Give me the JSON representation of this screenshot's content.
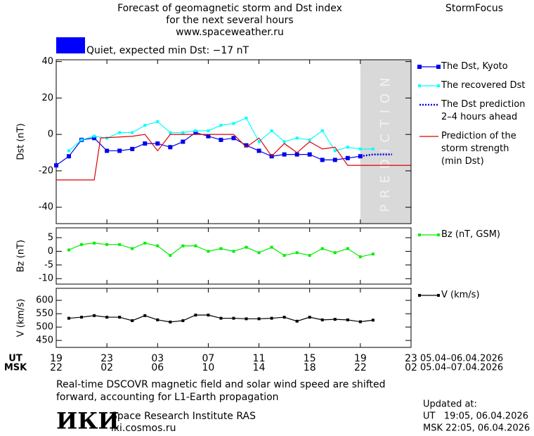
{
  "header": {
    "title_lines": [
      "Forecast of geomagnetic storm and Dst index",
      "for the next several hours",
      "www.spaceweather.ru"
    ],
    "brand": "StormFocus",
    "status": "Quiet, expected min Dst: −17 nT",
    "status_color": "#0000ff"
  },
  "chart_data": [
    {
      "type": "line",
      "ylabel": "Dst (nT)",
      "xlim": [
        0,
        28
      ],
      "xticks": [
        0,
        4,
        8,
        12,
        16,
        20,
        24,
        28
      ],
      "ylim": [
        -49,
        41
      ],
      "yticks": [
        -40,
        -20,
        0,
        20,
        40
      ],
      "shade": {
        "xlim": [
          24,
          28
        ],
        "label": "PREDICTION",
        "color": "#d9d9d9"
      },
      "series": [
        {
          "name": "The Dst, Kyoto",
          "color": "#0000ee",
          "marker": "square",
          "style": "solid",
          "x": [
            0,
            1,
            2,
            3,
            4,
            5,
            6,
            7,
            8,
            9,
            10,
            11,
            12,
            13,
            14,
            15,
            16,
            17,
            18,
            19,
            20,
            21,
            22,
            23,
            24
          ],
          "values": [
            -17,
            -12,
            -3,
            -2,
            -9,
            -9,
            -8,
            -5,
            -5,
            -7,
            -4,
            1,
            -1,
            -3,
            -2,
            -6,
            -9,
            -12,
            -11,
            -11,
            -11,
            -14,
            -14,
            -13,
            -12
          ]
        },
        {
          "name": "The recovered Dst",
          "color": "#00ffff",
          "marker": "small-square",
          "style": "solid",
          "x": [
            1,
            2,
            3,
            4,
            5,
            6,
            7,
            8,
            9,
            10,
            11,
            12,
            13,
            14,
            15,
            16,
            17,
            18,
            19,
            20,
            21,
            22,
            23,
            24,
            25
          ],
          "values": [
            -9,
            -3,
            -1,
            -2,
            1,
            1,
            5,
            7,
            1,
            1,
            2,
            2,
            5,
            6,
            9,
            -4,
            2,
            -4,
            -2,
            -3,
            2,
            -9,
            -7,
            -8,
            -8
          ]
        },
        {
          "name": "The Dst prediction\n2–4 hours ahead",
          "color": "#0000ee",
          "marker": "none",
          "style": "dotted",
          "x": [
            24,
            25,
            26.5
          ],
          "values": [
            -12,
            -11,
            -11
          ]
        },
        {
          "name": "Prediction of the\nstorm strength\n(min Dst)",
          "color": "#dd0000",
          "marker": "none",
          "style": "solid",
          "x": [
            0,
            3,
            3.5,
            6,
            7,
            8,
            9,
            14,
            15,
            16,
            17,
            18,
            19,
            20,
            21,
            22,
            23,
            28
          ],
          "values": [
            -25,
            -25,
            -2,
            -1,
            0,
            -9,
            0,
            0,
            -7,
            -2,
            -12,
            -5,
            -10,
            -4,
            -8,
            -7,
            -17,
            -17
          ]
        }
      ]
    },
    {
      "type": "line",
      "ylabel": "Bz (nT)",
      "xlim": [
        0,
        28
      ],
      "xticks": [
        0,
        4,
        8,
        12,
        16,
        20,
        24,
        28
      ],
      "ylim": [
        -12,
        8.6
      ],
      "yticks": [
        -10,
        -5,
        0,
        5
      ],
      "series": [
        {
          "name": "Bz (nT, GSM)",
          "color": "#00ee00",
          "marker": "small-square",
          "style": "solid",
          "x": [
            1,
            2,
            3,
            4,
            5,
            6,
            7,
            8,
            9,
            10,
            11,
            12,
            13,
            14,
            15,
            16,
            17,
            18,
            19,
            20,
            21,
            22,
            23,
            24,
            25
          ],
          "values": [
            0.5,
            2.5,
            3,
            2.5,
            2.5,
            1,
            3,
            2,
            -1.5,
            2,
            2,
            0,
            1,
            0,
            1.5,
            -0.5,
            1.5,
            -1.5,
            -0.5,
            -1.5,
            1,
            -0.5,
            1,
            -2,
            -1
          ]
        }
      ]
    },
    {
      "type": "line",
      "ylabel": "V (km/s)",
      "xlim": [
        0,
        28
      ],
      "xticks": [
        0,
        4,
        8,
        12,
        16,
        20,
        24,
        28
      ],
      "ylim": [
        424,
        645
      ],
      "yticks": [
        450,
        500,
        550,
        600
      ],
      "series": [
        {
          "name": "V (km/s)",
          "color": "#000000",
          "marker": "small-square",
          "style": "solid",
          "x": [
            1,
            2,
            3,
            4,
            5,
            6,
            7,
            8,
            9,
            10,
            11,
            12,
            13,
            14,
            15,
            16,
            17,
            18,
            19,
            20,
            21,
            22,
            23,
            24,
            25
          ],
          "values": [
            533,
            537,
            543,
            537,
            537,
            524,
            543,
            527,
            519,
            524,
            545,
            545,
            533,
            533,
            531,
            531,
            533,
            537,
            522,
            537,
            527,
            529,
            527,
            520,
            526
          ]
        }
      ]
    }
  ],
  "time_axis": {
    "ut_label": "UT",
    "msk_label": "MSK",
    "ut_ticks": [
      {
        "value": 0,
        "label": "19"
      },
      {
        "value": 4,
        "label": "23"
      },
      {
        "value": 8,
        "label": "03"
      },
      {
        "value": 12,
        "label": "07"
      },
      {
        "value": 16,
        "label": "11"
      },
      {
        "value": 20,
        "label": "15"
      },
      {
        "value": 24,
        "label": "19"
      },
      {
        "value": 28,
        "label": "23"
      }
    ],
    "msk_ticks": [
      {
        "value": 0,
        "label": "22"
      },
      {
        "value": 4,
        "label": "02"
      },
      {
        "value": 8,
        "label": "06"
      },
      {
        "value": 12,
        "label": "10"
      },
      {
        "value": 16,
        "label": "14"
      },
      {
        "value": 20,
        "label": "18"
      },
      {
        "value": 24,
        "label": "22"
      },
      {
        "value": 28,
        "label": "02"
      }
    ],
    "ut_range": "05.04–06.04.2026",
    "msk_range": "05.04–07.04.2026"
  },
  "footer": {
    "note": "Real-time DSCOVR magnetic field and solar wind speed are shifted forward, accounting for L1-Earth propagation",
    "logo": "ИКИ",
    "institute": "Space Research Institute RAS",
    "site": "iki.cosmos.ru",
    "updated_label": "Updated at:",
    "updated_ut": "UT   19:05, 06.04.2026",
    "updated_msk": "MSK 22:05, 06.04.2026"
  }
}
